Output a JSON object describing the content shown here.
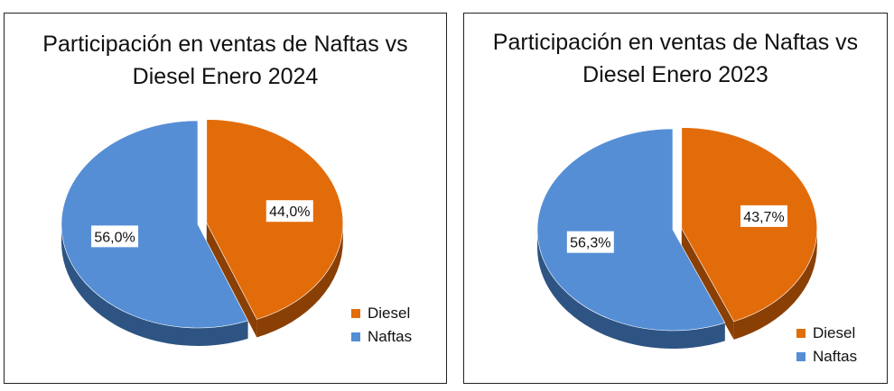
{
  "chart_data": [
    {
      "type": "pie",
      "title": "Participación en ventas de Naftas vs Diesel Enero 2024",
      "title_lines": [
        "Participación en ventas de Naftas vs",
        "Diesel Enero 2024"
      ],
      "categories": [
        "Diesel",
        "Naftas"
      ],
      "values": [
        44.0,
        56.0
      ],
      "data_labels": [
        "44,0%",
        "56,0%"
      ],
      "colors": [
        "#E36C0A",
        "#558ED5"
      ],
      "legend": "right",
      "exploded": [
        "Diesel"
      ],
      "style": "3d"
    },
    {
      "type": "pie",
      "title": "Participación en ventas de Naftas vs Diesel Enero 2023",
      "title_lines": [
        "Participación en ventas de Naftas vs",
        "Diesel Enero 2023"
      ],
      "categories": [
        "Diesel",
        "Naftas"
      ],
      "values": [
        43.7,
        56.3
      ],
      "data_labels": [
        "43,7%",
        "56,3%"
      ],
      "colors": [
        "#E36C0A",
        "#558ED5"
      ],
      "legend": "right",
      "exploded": [
        "Diesel"
      ],
      "style": "3d"
    }
  ]
}
